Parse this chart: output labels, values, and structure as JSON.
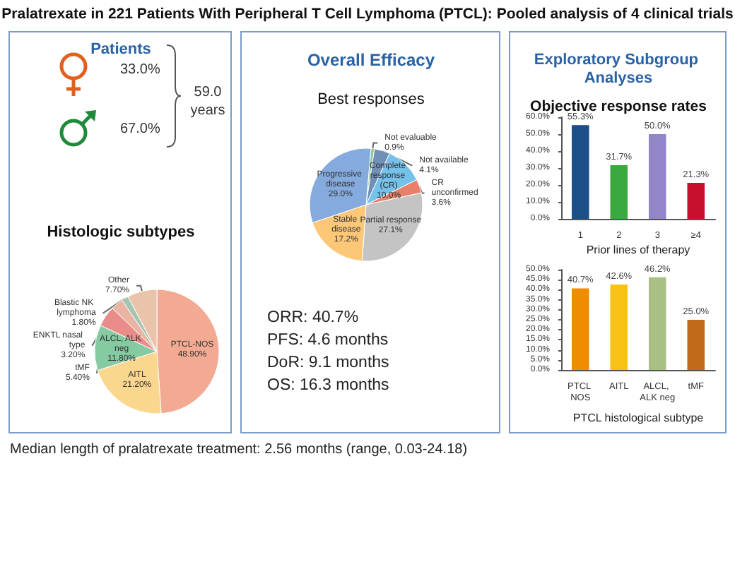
{
  "chart_data": [
    {
      "type": "other",
      "title": "Pralatrexate in 221 Patients With Peripheral T Cell Lymphoma (PTCL): Pooled analysis of 4 clinical trials",
      "annotations": [
        "Median length of pralatrexate treatment: 2.56 months (range, 0.03-24.18)"
      ]
    },
    {
      "type": "other",
      "title": "Patients",
      "annotations": [
        "33.0%",
        "67.0%",
        "59.0 years"
      ]
    },
    {
      "type": "pie",
      "title": "Histologic subtypes",
      "categories": [
        "PTCL-NOS",
        "AITL",
        "ALCL, ALK neg",
        "tMF",
        "ENKTL nasal type",
        "Blastic NK lymphoma",
        "Other"
      ],
      "values": [
        48.9,
        21.2,
        11.8,
        5.4,
        3.2,
        1.8,
        7.7
      ],
      "value_labels": [
        "48.90%",
        "21.20%",
        "11.80%",
        "5.40%",
        "3.20%",
        "1.80%",
        "7.70%"
      ],
      "colors": [
        "#f2aa92",
        "#fbd68e",
        "#86caa2",
        "#e98c8a",
        "#e9b4a2",
        "#a6c4b2",
        "#eac4aa"
      ],
      "legend": false
    },
    {
      "type": "pie",
      "title": "Overall Efficacy",
      "subtitle": "Best responses",
      "categories": [
        "Not evaluable",
        "Not available",
        "Complete response (CR)",
        "CR unconfirmed",
        "Partial response",
        "Stable disease",
        "Progressive disease"
      ],
      "values": [
        0.9,
        4.1,
        10.0,
        3.6,
        27.1,
        17.2,
        29.0
      ],
      "value_labels": [
        "0.9%",
        "4.1%",
        "10.0%",
        "3.6%",
        "27.1%",
        "17.2%",
        "29.0%"
      ],
      "colors": [
        "#8cc890",
        "#7090b8",
        "#74c2ea",
        "#e8806a",
        "#c4c4c4",
        "#fcc878",
        "#84aade"
      ],
      "annotations": [
        "ORR: 40.7%",
        "PFS: 4.6 months",
        "DoR: 9.1 months",
        "OS: 16.3 months"
      ],
      "legend": false
    },
    {
      "type": "bar",
      "title": "Exploratory Subgroup Analyses",
      "subtitle": "Objective response rates",
      "xlabel": "Prior lines of therapy",
      "categories": [
        "1",
        "2",
        "3",
        "≥4"
      ],
      "values": [
        55.3,
        31.7,
        50.0,
        21.3
      ],
      "value_labels": [
        "55.3%",
        "31.7%",
        "50.0%",
        "21.3%"
      ],
      "colors": [
        "#1c4e88",
        "#3aaa3e",
        "#9484c8",
        "#c8102e"
      ],
      "ylim": [
        0,
        60
      ],
      "yticks": [
        {
          "value": 0,
          "label": "0.0%"
        },
        {
          "value": 10,
          "label": "10.0%"
        },
        {
          "value": 20,
          "label": "20.0%"
        },
        {
          "value": 30,
          "label": "30.0%"
        },
        {
          "value": 40,
          "label": "40.0%"
        },
        {
          "value": 50,
          "label": "50.0%"
        },
        {
          "value": 60,
          "label": "60.0%"
        }
      ],
      "grid": false,
      "legend": false
    },
    {
      "type": "bar",
      "xlabel": "PTCL histological subtype",
      "categories": [
        "PTCL NOS",
        "AITL",
        "ALCL, ALK neg",
        "tMF"
      ],
      "values": [
        40.7,
        42.6,
        46.2,
        25.0
      ],
      "value_labels": [
        "40.7%",
        "42.6%",
        "46.2%",
        "25.0%"
      ],
      "colors": [
        "#f08c00",
        "#f8c214",
        "#a8c084",
        "#c06a1a"
      ],
      "ylim": [
        0,
        50
      ],
      "yticks": [
        {
          "value": 0,
          "label": "0.0%"
        },
        {
          "value": 5,
          "label": "5.0%"
        },
        {
          "value": 10,
          "label": "10.0%"
        },
        {
          "value": 15,
          "label": "15.0%"
        },
        {
          "value": 20,
          "label": "20.0%"
        },
        {
          "value": 25,
          "label": "25.0%"
        },
        {
          "value": 30,
          "label": "30.0%"
        },
        {
          "value": 35,
          "label": "35.0%"
        },
        {
          "value": 40,
          "label": "40.0%"
        },
        {
          "value": 45,
          "label": "45.0%"
        },
        {
          "value": 50,
          "label": "50.0%"
        }
      ],
      "grid": false,
      "legend": false
    }
  ]
}
